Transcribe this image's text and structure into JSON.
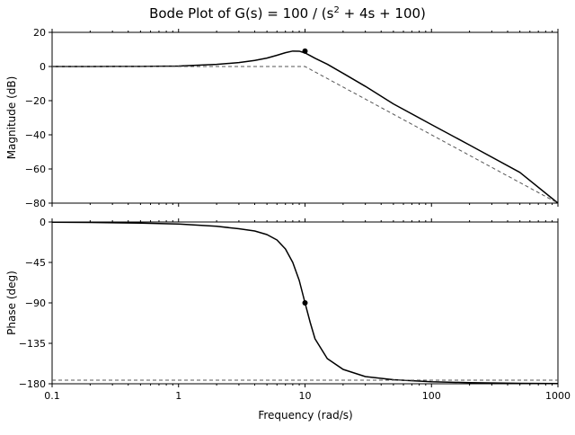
{
  "chart_data": {
    "type": "line",
    "title_main": "Bode Plot of G(s) = 100 / (s",
    "title_sup": "2",
    "title_rest": " + 4s + 100)",
    "x_scale": "log",
    "xlim": [
      0.1,
      1000
    ],
    "xticks": [
      0.1,
      1,
      10,
      100,
      1000
    ],
    "xtick_labels": [
      "0.1",
      "1",
      "10",
      "100",
      "1000"
    ],
    "xlabel": "Frequency (rad/s)",
    "grid": false,
    "magnitude": {
      "ylabel": "Magnitude (dB)",
      "ylim": [
        -80,
        20
      ],
      "yticks": [
        20,
        0,
        -20,
        -40,
        -60,
        -80
      ],
      "ytick_labels": [
        "20",
        "0",
        "−20",
        "−40",
        "−60",
        "−80"
      ],
      "series": [
        {
          "style": "solid",
          "color": "#000000",
          "x": [
            0.1,
            0.2,
            0.5,
            1,
            2,
            3,
            4,
            5,
            6,
            7,
            8,
            9,
            10,
            11,
            12,
            15,
            20,
            30,
            50,
            100,
            200,
            500,
            1000
          ],
          "y": [
            0.0,
            0.01,
            0.07,
            0.29,
            1.27,
            2.29,
            3.57,
            4.92,
            6.59,
            8.09,
            9.04,
            8.98,
            7.96,
            6.36,
            4.85,
            1.35,
            -3.98,
            -11.6,
            -21.9,
            -34.0,
            -46.0,
            -62.0,
            -80.0
          ]
        },
        {
          "style": "dashed",
          "color": "#555555",
          "x": [
            0.1,
            10,
            1000
          ],
          "y": [
            0,
            0,
            -80
          ]
        }
      ],
      "markers": [
        {
          "x": 10,
          "y": 9
        }
      ]
    },
    "phase": {
      "ylabel": "Phase (deg)",
      "ylim": [
        -180,
        0
      ],
      "yticks": [
        0,
        -45,
        -90,
        -135,
        -180
      ],
      "ytick_labels": [
        "0",
        "−45",
        "−90",
        "−135",
        "−180"
      ],
      "series": [
        {
          "style": "solid",
          "color": "#000000",
          "x": [
            0.1,
            0.2,
            0.5,
            1,
            2,
            3,
            4,
            5,
            6,
            7,
            8,
            9,
            10,
            11,
            12,
            15,
            20,
            30,
            50,
            100,
            200,
            500,
            1000
          ],
          "y": [
            -0.2,
            -0.5,
            -1.2,
            -2.3,
            -4.8,
            -7.5,
            -10.0,
            -14.0,
            -20.0,
            -30.0,
            -45.0,
            -65.0,
            -90.0,
            -112.0,
            -130.0,
            -152.0,
            -164.0,
            -172.0,
            -175.5,
            -177.7,
            -178.8,
            -179.5,
            -179.8
          ]
        },
        {
          "style": "dashed",
          "color": "#555555",
          "x": [
            0.1,
            1000
          ],
          "y": [
            -176,
            -176
          ]
        }
      ],
      "markers": [
        {
          "x": 10,
          "y": -90
        }
      ]
    }
  }
}
